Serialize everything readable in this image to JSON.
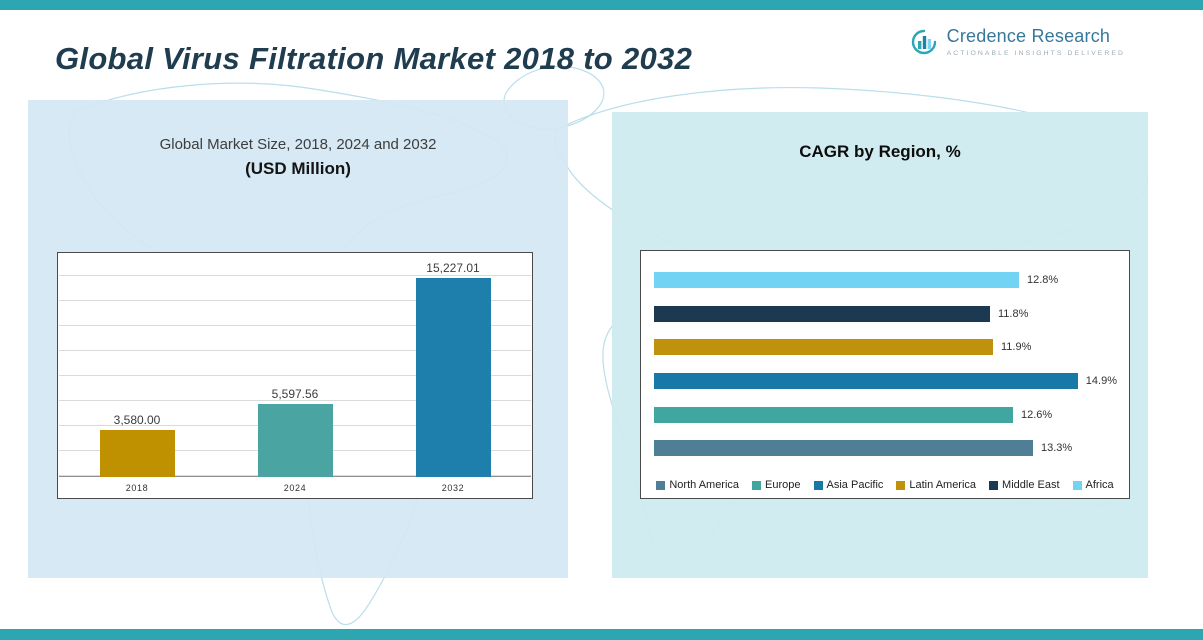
{
  "header": {
    "title": "Global Virus Filtration Market 2018 to 2032"
  },
  "logo": {
    "name": "Credence Research",
    "tagline": "Actionable Insights Delivered"
  },
  "colors": {
    "strip_teal": "#2da6b1",
    "panel_left_bg": "#d4e7f3",
    "panel_right_bg": "#ceebef",
    "map_outline": "#aed8e9"
  },
  "chart_data": [
    {
      "type": "bar",
      "title": "Global Market Size, 2018, 2024 and 2032",
      "subtitle": "(USD Million)",
      "categories": [
        "2018",
        "2024",
        "2032"
      ],
      "values": [
        3580.0,
        5597.56,
        15227.01
      ],
      "labels": [
        "3,580.00",
        "5,597.56",
        "15,227.01"
      ],
      "ylim": [
        0,
        16000
      ],
      "grid": true,
      "colors": [
        "#bf9000",
        "#4aa5a2",
        "#1f7fac"
      ]
    },
    {
      "type": "bar",
      "orientation": "horizontal",
      "title": "CAGR by Region, %",
      "categories": [
        "Africa",
        "Middle East",
        "Latin America",
        "Asia Pacific",
        "Europe",
        "North America"
      ],
      "values": [
        12.8,
        11.8,
        11.9,
        14.9,
        12.6,
        13.3
      ],
      "labels": [
        "12.8%",
        "11.8%",
        "11.9%",
        "14.9%",
        "12.6%",
        "13.3%"
      ],
      "xlim": [
        0,
        16
      ],
      "legend_position": "bottom",
      "legend": [
        "North America",
        "Europe",
        "Asia Pacific",
        "Latin America",
        "Middle East",
        "Africa"
      ],
      "region_colors": {
        "North America": "#4e7f96",
        "Europe": "#41a6a0",
        "Asia Pacific": "#1878a8",
        "Latin America": "#c0920c",
        "Middle East": "#1b3a52",
        "Africa": "#72d3f5"
      }
    }
  ]
}
